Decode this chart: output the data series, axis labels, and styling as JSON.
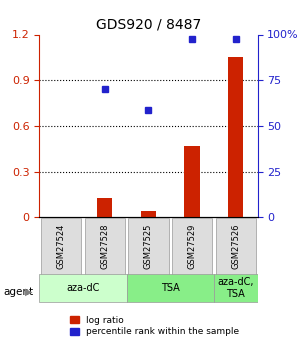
{
  "title": "GDS920 / 8487",
  "samples": [
    "GSM27524",
    "GSM27528",
    "GSM27525",
    "GSM27529",
    "GSM27526"
  ],
  "log_ratio": [
    0.0,
    0.13,
    0.04,
    0.47,
    1.05
  ],
  "percentile_rank": [
    null,
    0.7,
    0.585,
    0.975,
    0.975
  ],
  "bar_color": "#cc2200",
  "dot_color": "#2222cc",
  "ylim_left": [
    0,
    1.2
  ],
  "ylim_right": [
    0,
    100
  ],
  "yticks_left": [
    0,
    0.3,
    0.6,
    0.9,
    1.2
  ],
  "yticks_right": [
    0,
    25,
    50,
    75,
    100
  ],
  "ytick_labels_left": [
    "0",
    "0.3",
    "0.6",
    "0.9",
    "1.2"
  ],
  "ytick_labels_right": [
    "0",
    "25",
    "50",
    "75",
    "100%"
  ],
  "legend_log_ratio": "log ratio",
  "legend_percentile": "percentile rank within the sample",
  "agent_label": "agent",
  "bar_width": 0.35,
  "groups": [
    {
      "indices": [
        0,
        1
      ],
      "label": "aza-dC",
      "color": "#ccffcc"
    },
    {
      "indices": [
        2,
        3
      ],
      "label": "TSA",
      "color": "#88ee88"
    },
    {
      "indices": [
        4
      ],
      "label": "aza-dC,\nTSA",
      "color": "#88ee88"
    }
  ]
}
